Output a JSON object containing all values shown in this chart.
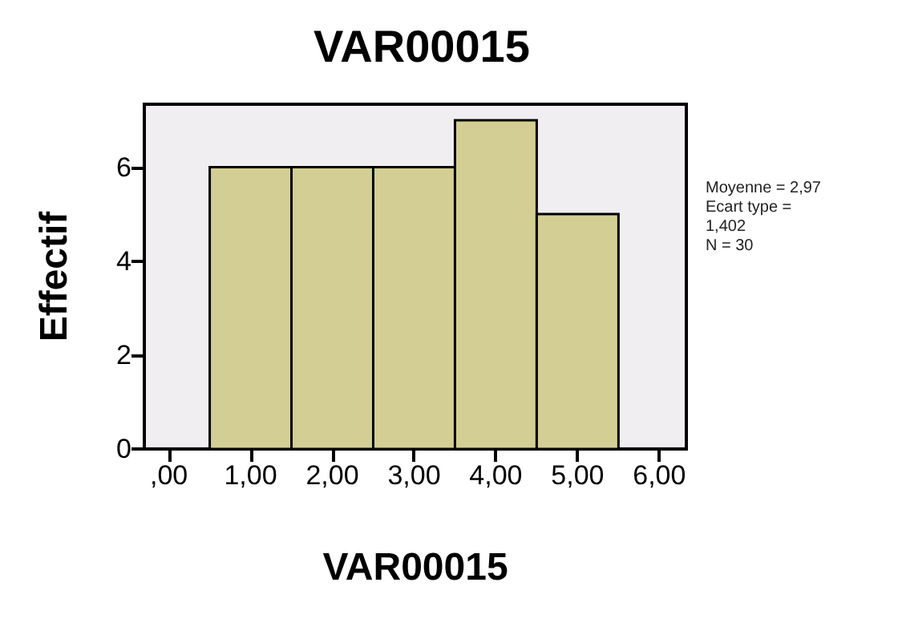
{
  "chart_data": {
    "type": "histogram",
    "title": "VAR00015",
    "xlabel": "VAR00015",
    "ylabel": "Effectif",
    "bins": [
      0.5,
      1.5,
      2.5,
      3.5,
      4.5,
      5.5
    ],
    "values": [
      6,
      6,
      6,
      7,
      5
    ],
    "color": "#d3cf94",
    "xlim": [
      -0.3,
      6.33
    ],
    "xticks": [
      {
        "value": 0,
        "label": ",00"
      },
      {
        "value": 1,
        "label": "1,00"
      },
      {
        "value": 2,
        "label": "2,00"
      },
      {
        "value": 3,
        "label": "3,00"
      },
      {
        "value": 4,
        "label": "4,00"
      },
      {
        "value": 5,
        "label": "5,00"
      },
      {
        "value": 6,
        "label": "6,00"
      }
    ],
    "ylim": [
      0,
      7.34
    ],
    "yticks": [
      0,
      2,
      4,
      6
    ],
    "grid": false,
    "annotations": [
      "Moyenne = 2,97",
      "Ecart type = 1,402",
      "N = 30"
    ]
  }
}
